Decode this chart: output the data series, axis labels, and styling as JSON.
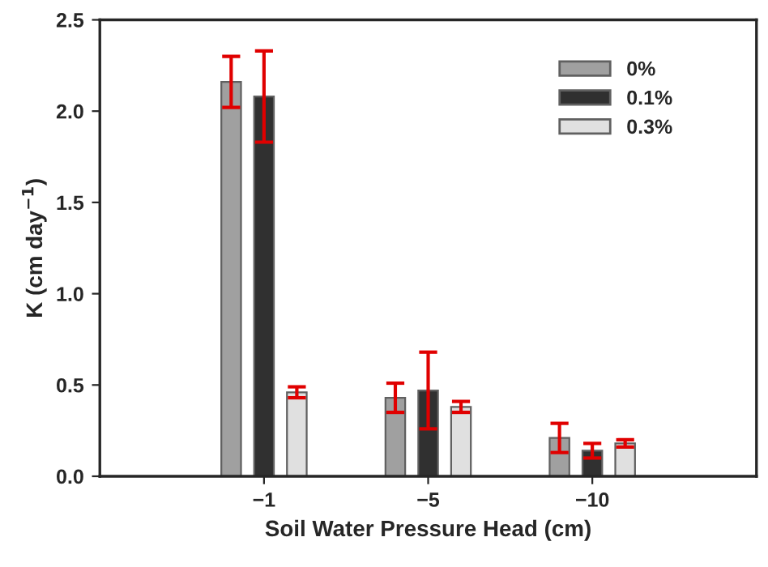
{
  "chart_data": {
    "type": "bar",
    "xlabel": "Soil Water Pressure Head (cm)",
    "ylabel": "K (cm day$^{−1}$)",
    "categories": [
      "−1",
      "−5",
      "−10"
    ],
    "series": [
      {
        "name": "0%",
        "color": "#a0a0a0",
        "values": [
          2.16,
          0.43,
          0.21
        ],
        "errors": [
          0.14,
          0.08,
          0.08
        ]
      },
      {
        "name": "0.1%",
        "color": "#303030",
        "values": [
          2.08,
          0.47,
          0.14
        ],
        "errors": [
          0.25,
          0.21,
          0.04
        ]
      },
      {
        "name": "0.3%",
        "color": "#e0e0e0",
        "values": [
          0.46,
          0.38,
          0.18
        ],
        "errors": [
          0.03,
          0.03,
          0.02
        ]
      }
    ],
    "ylim": [
      0,
      2.5
    ],
    "yticks": [
      {
        "value": 0,
        "label": "0.0"
      },
      {
        "value": 0.5,
        "label": "0.5"
      },
      {
        "value": 1,
        "label": "1.0"
      },
      {
        "value": 1.5,
        "label": "1.5"
      },
      {
        "value": 2,
        "label": "2.0"
      },
      {
        "value": 2.5,
        "label": "2.5"
      }
    ],
    "legend": "top right",
    "grid": false
  }
}
